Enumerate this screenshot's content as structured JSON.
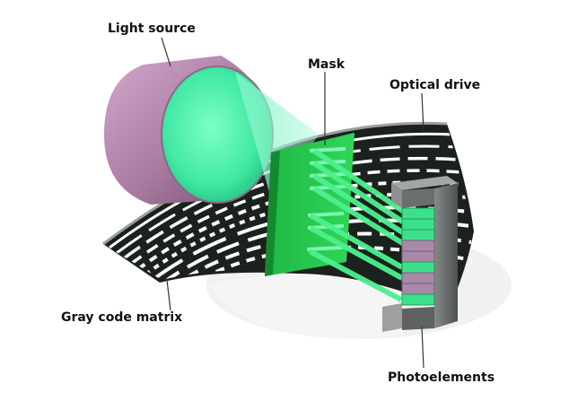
{
  "labels": {
    "light_source": "Light source",
    "mask": "Mask",
    "optical_drive": "Optical drive",
    "gray_code_matrix": "Gray code matrix",
    "photoelements": "Photoelements"
  },
  "colors": {
    "light_source_body": "#b98db3",
    "light_beam": "#5ff0b0",
    "mask_green": "#22c84a",
    "disk_dark": "#1a1f1a",
    "photo_green": "#3de08a",
    "photo_purple": "#a88aa8",
    "housing_gray": "#5e6260"
  }
}
